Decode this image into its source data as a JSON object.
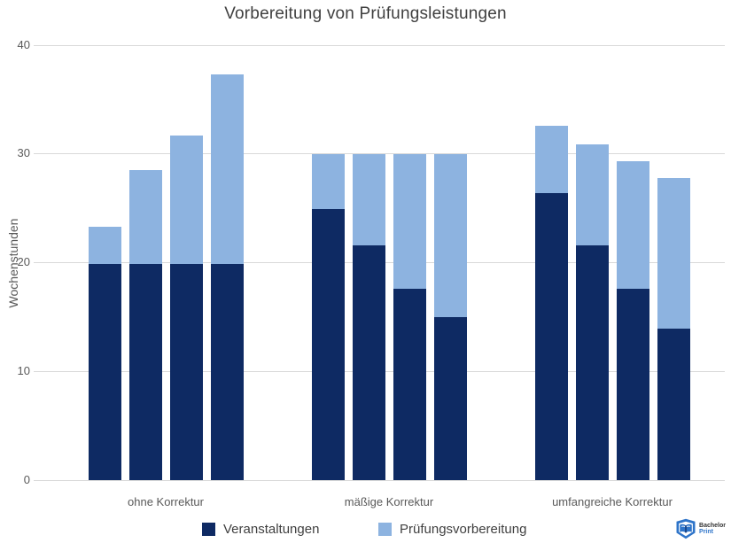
{
  "chart_data": {
    "type": "bar",
    "stacked": true,
    "title": "Vorbereitung von Prüfungsleistungen",
    "xlabel": "",
    "ylabel": "Wochenstunden",
    "ylim": [
      0,
      40
    ],
    "yticks": [
      0,
      10,
      20,
      30,
      40
    ],
    "grid": true,
    "legend_position": "bottom",
    "categories": [
      "ohne Korrektur",
      "mäßige Korrektur",
      "umfangreiche Korrektur"
    ],
    "bars_per_category": 4,
    "series": [
      {
        "name": "Veranstaltungen",
        "color": "#0e2a63",
        "values": [
          [
            19.9,
            19.9,
            19.9,
            19.9
          ],
          [
            24.9,
            21.6,
            17.6,
            15.0
          ],
          [
            26.4,
            21.6,
            17.6,
            13.9
          ]
        ]
      },
      {
        "name": "Prüfungsvorbereitung",
        "color": "#8db3e0",
        "values": [
          [
            3.4,
            8.6,
            11.8,
            17.4
          ],
          [
            5.1,
            8.4,
            12.4,
            15.0
          ],
          [
            6.2,
            9.3,
            11.7,
            13.9
          ]
        ]
      }
    ],
    "stacked_totals": [
      [
        23.3,
        28.5,
        31.7,
        37.3
      ],
      [
        30.0,
        30.0,
        30.0,
        30.0
      ],
      [
        32.6,
        30.9,
        29.3,
        27.8
      ]
    ]
  },
  "colors": {
    "grid": "#d9d9d9",
    "axis_text": "#595959",
    "title_text": "#404040",
    "series_dark": "#0e2a63",
    "series_light": "#8db3e0"
  },
  "logo": {
    "brand_top": "Bachelor",
    "brand_bottom": "Print"
  }
}
